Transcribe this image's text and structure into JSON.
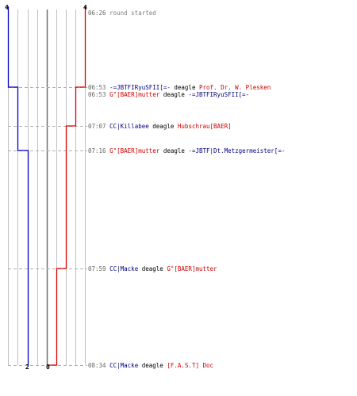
{
  "colors": {
    "team_a": "#0000cc",
    "team_b": "#dd0000",
    "grid": "#c0c0c0",
    "middle": "#707070",
    "dash": "#b0b0b0",
    "team_a_text": "#000080",
    "team_b_text": "#cc0000"
  },
  "scores": {
    "team_a_start": "4",
    "team_b_start": "4",
    "team_a_end": "2",
    "team_b_end": "0"
  },
  "max_score": 4,
  "start_time": "06:26",
  "end_time": "08:34",
  "events": [
    {
      "time": "06:26",
      "type": "message",
      "text": "round started"
    },
    {
      "time": "06:53",
      "type": "kill",
      "killer": "-=JBTFIRyuSFII[=-",
      "killer_team": "a",
      "weapon": "deagle",
      "victim": "Prof. Dr. W. Plesken",
      "victim_team": "b"
    },
    {
      "time": "06:53",
      "type": "kill",
      "killer": "G\"[BAER]mutter",
      "killer_team": "b",
      "weapon": "deagle",
      "victim": "-=JBTFIRyuSFII[=-",
      "victim_team": "a"
    },
    {
      "time": "07:07",
      "type": "kill",
      "killer": "CC|Killabee",
      "killer_team": "a",
      "weapon": "deagle",
      "victim": "Hubschrau[BAER]",
      "victim_team": "b"
    },
    {
      "time": "07:16",
      "type": "kill",
      "killer": "G\"[BAER]mutter",
      "killer_team": "b",
      "weapon": "deagle",
      "victim": "-=JBTF|Dt.Metzgermeister[=-",
      "victim_team": "a"
    },
    {
      "time": "07:59",
      "type": "kill",
      "killer": "CC|Macke",
      "killer_team": "a",
      "weapon": "deagle",
      "victim": "G\"[BAER]mutter",
      "victim_team": "b"
    },
    {
      "time": "08:34",
      "type": "kill",
      "killer": "CC|Macke",
      "killer_team": "a",
      "weapon": "deagle",
      "victim": "[F.A.S.T] Doc",
      "victim_team": "b"
    }
  ]
}
